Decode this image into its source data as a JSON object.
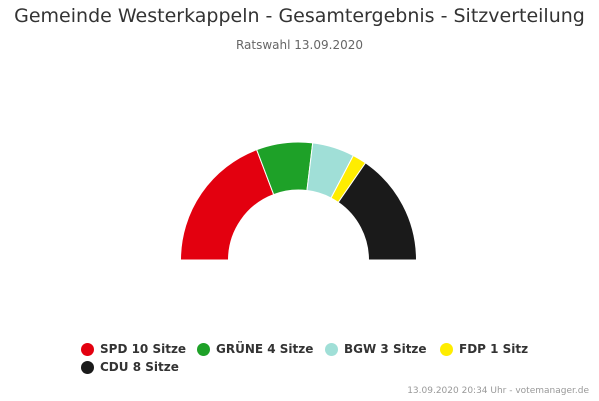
{
  "chart_data": {
    "type": "pie",
    "subtype": "parliament-semicircle",
    "title": "Gemeinde Westerkappeln - Gesamtergebnis - Sitzverteilung",
    "subtitle": "Ratswahl 13.09.2020",
    "series": [
      {
        "name": "SPD",
        "value": 10,
        "legend_label": "SPD 10 Sitze",
        "color": "#e3000f"
      },
      {
        "name": "GRÜNE",
        "value": 4,
        "legend_label": "GRÜNE 4 Sitze",
        "color": "#1ea128"
      },
      {
        "name": "BGW",
        "value": 3,
        "legend_label": "BGW 3 Sitze",
        "color": "#a0dfd7"
      },
      {
        "name": "FDP",
        "value": 1,
        "legend_label": "FDP 1 Sitz",
        "color": "#ffed00"
      },
      {
        "name": "CDU",
        "value": 8,
        "legend_label": "CDU 8 Sitze",
        "color": "#1a1a1a"
      }
    ],
    "legend_position": "bottom"
  },
  "credits": "13.09.2020 20:34 Uhr - votemanager.de"
}
